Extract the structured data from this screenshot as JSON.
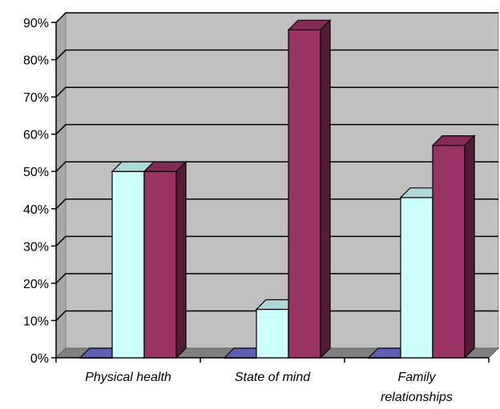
{
  "chart_data": {
    "type": "bar",
    "title": "",
    "xlabel": "",
    "ylabel": "",
    "categories": [
      "Physical health",
      "State of mind",
      "Family relationships"
    ],
    "category_label_lines": [
      [
        "Physical health"
      ],
      [
        "State of mind"
      ],
      [
        "Family",
        "relationships"
      ]
    ],
    "series": [
      {
        "values": [
          0.0,
          0.0,
          0.0
        ],
        "color": "#7070d0"
      },
      {
        "values": [
          0.5,
          0.13,
          0.43
        ],
        "color": "#ccffff"
      },
      {
        "values": [
          0.5,
          0.88,
          0.57
        ],
        "color": "#993366"
      }
    ],
    "ylim": [
      0,
      0.9
    ],
    "yticks": [
      0,
      0.1,
      0.2,
      0.3,
      0.4,
      0.5,
      0.6,
      0.7,
      0.8,
      0.9
    ],
    "ytick_labels": [
      "0%",
      "10%",
      "20%",
      "30%",
      "40%",
      "50%",
      "60%",
      "70%",
      "80%",
      "90%"
    ],
    "grid": true,
    "three_d": true,
    "legend": "none",
    "colors": {
      "wall": "#c0c0c0",
      "floor": "#808080",
      "gridline": "#000000"
    }
  }
}
